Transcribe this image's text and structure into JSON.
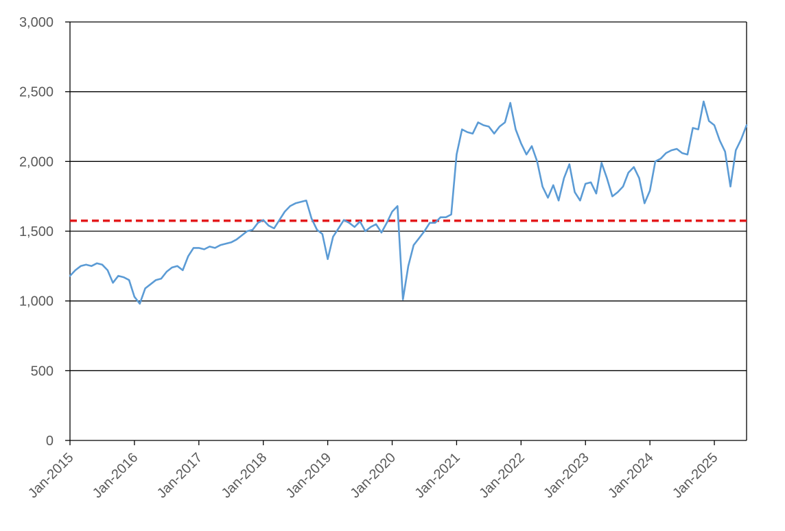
{
  "chart_data": {
    "type": "line",
    "title": "",
    "xlabel": "",
    "ylabel": "",
    "ylim": [
      0,
      3000
    ],
    "xlim": [
      "2015-01",
      "2025-07"
    ],
    "grid": true,
    "legend": "none",
    "x_tick_labels": [
      "Jan-2015",
      "Jan-2016",
      "Jan-2017",
      "Jan-2018",
      "Jan-2019",
      "Jan-2020",
      "Jan-2021",
      "Jan-2022",
      "Jan-2023",
      "Jan-2024",
      "Jan-2025"
    ],
    "y_tick_labels": [
      "0",
      "500",
      "1,000",
      "1,500",
      "2,000",
      "2,500",
      "3,000"
    ],
    "y_ticks": [
      0,
      500,
      1000,
      1500,
      2000,
      2500,
      3000
    ],
    "series": [
      {
        "color": "#5B9BD5",
        "x": [
          "2015-01",
          "2015-02",
          "2015-03",
          "2015-04",
          "2015-05",
          "2015-06",
          "2015-07",
          "2015-08",
          "2015-09",
          "2015-10",
          "2015-11",
          "2015-12",
          "2016-01",
          "2016-02",
          "2016-03",
          "2016-04",
          "2016-05",
          "2016-06",
          "2016-07",
          "2016-08",
          "2016-09",
          "2016-10",
          "2016-11",
          "2016-12",
          "2017-01",
          "2017-02",
          "2017-03",
          "2017-04",
          "2017-05",
          "2017-06",
          "2017-07",
          "2017-08",
          "2017-09",
          "2017-10",
          "2017-11",
          "2017-12",
          "2018-01",
          "2018-02",
          "2018-03",
          "2018-04",
          "2018-05",
          "2018-06",
          "2018-07",
          "2018-08",
          "2018-09",
          "2018-10",
          "2018-11",
          "2018-12",
          "2019-01",
          "2019-02",
          "2019-03",
          "2019-04",
          "2019-05",
          "2019-06",
          "2019-07",
          "2019-08",
          "2019-09",
          "2019-10",
          "2019-11",
          "2019-12",
          "2020-01",
          "2020-02",
          "2020-03",
          "2020-04",
          "2020-05",
          "2020-06",
          "2020-07",
          "2020-08",
          "2020-09",
          "2020-10",
          "2020-11",
          "2020-12",
          "2021-01",
          "2021-02",
          "2021-03",
          "2021-04",
          "2021-05",
          "2021-06",
          "2021-07",
          "2021-08",
          "2021-09",
          "2021-10",
          "2021-11",
          "2021-12",
          "2022-01",
          "2022-02",
          "2022-03",
          "2022-04",
          "2022-05",
          "2022-06",
          "2022-07",
          "2022-08",
          "2022-09",
          "2022-10",
          "2022-11",
          "2022-12",
          "2023-01",
          "2023-02",
          "2023-03",
          "2023-04",
          "2023-05",
          "2023-06",
          "2023-07",
          "2023-08",
          "2023-09",
          "2023-10",
          "2023-11",
          "2023-12",
          "2024-01",
          "2024-02",
          "2024-03",
          "2024-04",
          "2024-05",
          "2024-06",
          "2024-07",
          "2024-08",
          "2024-09",
          "2024-10",
          "2024-11",
          "2024-12",
          "2025-01",
          "2025-02",
          "2025-03",
          "2025-04",
          "2025-05",
          "2025-06",
          "2025-07"
        ],
        "values": [
          1180,
          1220,
          1250,
          1260,
          1250,
          1270,
          1260,
          1220,
          1130,
          1180,
          1170,
          1150,
          1030,
          980,
          1090,
          1120,
          1150,
          1160,
          1210,
          1240,
          1250,
          1220,
          1320,
          1380,
          1380,
          1370,
          1390,
          1380,
          1400,
          1410,
          1420,
          1440,
          1470,
          1500,
          1510,
          1560,
          1580,
          1540,
          1520,
          1580,
          1640,
          1680,
          1700,
          1710,
          1720,
          1590,
          1510,
          1480,
          1300,
          1460,
          1520,
          1580,
          1560,
          1530,
          1570,
          1500,
          1530,
          1550,
          1490,
          1560,
          1640,
          1680,
          1010,
          1250,
          1400,
          1450,
          1500,
          1560,
          1560,
          1600,
          1600,
          1620,
          2050,
          2230,
          2210,
          2200,
          2280,
          2260,
          2250,
          2200,
          2250,
          2280,
          2420,
          2230,
          2130,
          2050,
          2110,
          2000,
          1820,
          1740,
          1830,
          1720,
          1880,
          1980,
          1780,
          1720,
          1840,
          1850,
          1770,
          1990,
          1880,
          1750,
          1780,
          1820,
          1920,
          1960,
          1880,
          1700,
          1790,
          2000,
          2020,
          2060,
          2080,
          2090,
          2060,
          2050,
          2240,
          2230,
          2430,
          2290,
          2260,
          2150,
          2070,
          1820,
          2080,
          2160,
          2260
        ]
      }
    ],
    "reference_lines": [
      {
        "y": 1575,
        "color": "#E31A1C",
        "style": "dashed"
      }
    ]
  }
}
